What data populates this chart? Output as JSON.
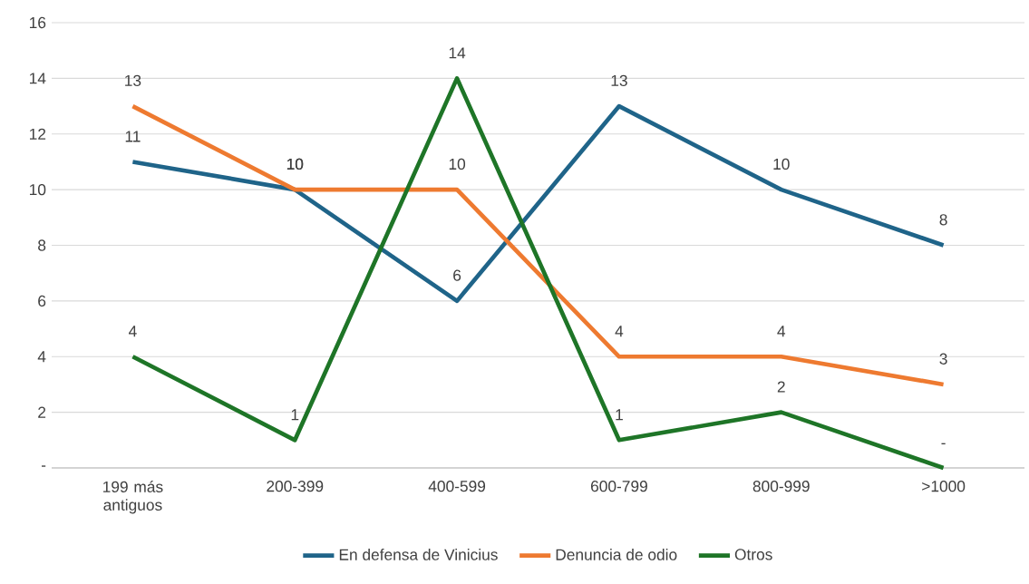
{
  "chart_data": {
    "type": "line",
    "categories": [
      "199 más antiguos",
      "200-399",
      "400-599",
      "600-799",
      "800-999",
      ">1000"
    ],
    "series": [
      {
        "name": "En defensa de Vinicius",
        "color": "#1f6489",
        "values": [
          11,
          10,
          6,
          13,
          10,
          8
        ],
        "value_labels": [
          "11",
          "10",
          "6",
          "13",
          "10",
          "8"
        ]
      },
      {
        "name": "Denuncia de odio",
        "color": "#ee7a30",
        "values": [
          13,
          10,
          10,
          4,
          4,
          3
        ],
        "value_labels": [
          "13",
          "10",
          "10",
          "4",
          "4",
          "3"
        ]
      },
      {
        "name": "Otros",
        "color": "#1e7527",
        "values": [
          4,
          1,
          14,
          1,
          2,
          0
        ],
        "value_labels": [
          "4",
          "1",
          "14",
          "1",
          "2",
          "-"
        ]
      }
    ],
    "ylim": [
      0,
      16
    ],
    "yticks": [
      {
        "value": 0,
        "label": "-"
      },
      2,
      4,
      6,
      8,
      10,
      12,
      14,
      16
    ],
    "grid": "y",
    "legend": "bottom",
    "marker": "none",
    "line_style": "solid"
  }
}
